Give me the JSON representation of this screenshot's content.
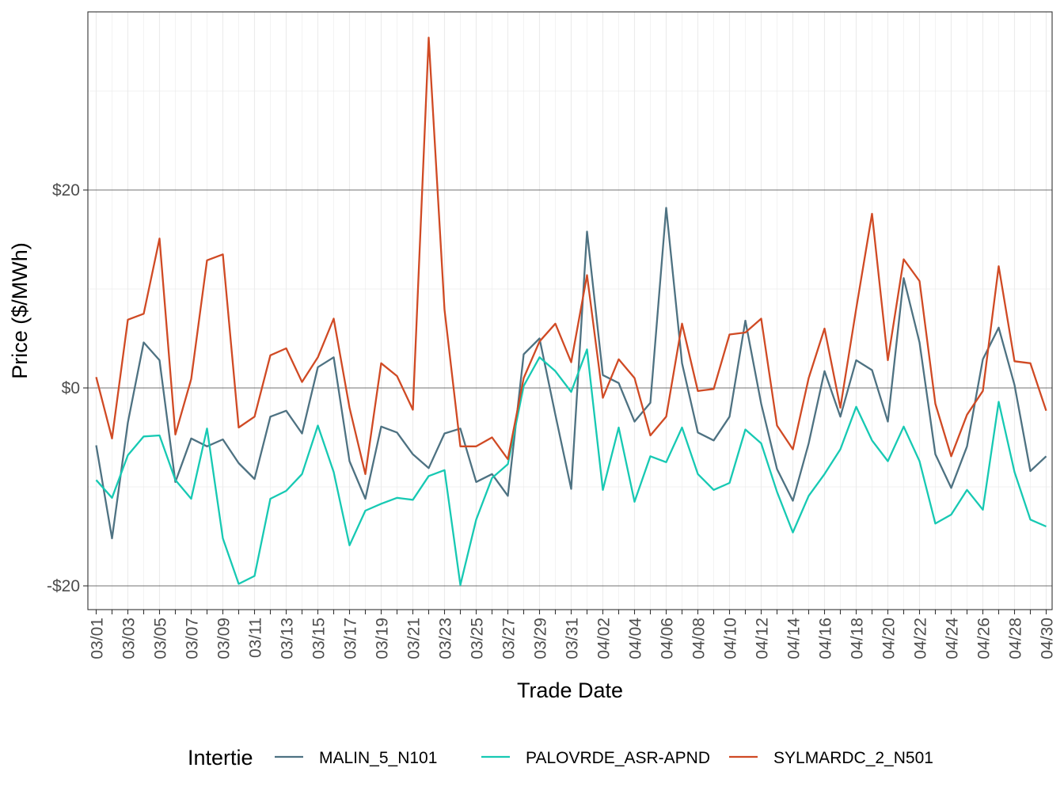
{
  "chart_data": {
    "type": "line",
    "title": "",
    "xlabel": "Trade Date",
    "ylabel": "Price ($/MWh)",
    "ylim": [
      -21,
      38
    ],
    "y_ticks": [
      -20,
      0,
      20
    ],
    "y_tick_labels": [
      "-$20",
      "$0",
      "$20"
    ],
    "x_tick_labels": [
      "03/01",
      "03/03",
      "03/05",
      "03/07",
      "03/09",
      "03/11",
      "03/13",
      "03/15",
      "03/17",
      "03/19",
      "03/21",
      "03/23",
      "03/25",
      "03/27",
      "03/29",
      "03/31",
      "04/02",
      "04/04",
      "04/06",
      "04/08",
      "04/10",
      "04/12",
      "04/14",
      "04/16",
      "04/18",
      "04/20",
      "04/22",
      "04/24",
      "04/26",
      "04/28",
      "04/30"
    ],
    "x_start": "03/01",
    "grid": true,
    "legend": {
      "title": "Intertie",
      "position": "bottom"
    },
    "series": [
      {
        "name": "MALIN_5_N101",
        "color": "#4e7282",
        "values": [
          -5.8,
          -15.2,
          -3.5,
          4.6,
          2.8,
          -9.5,
          -5.1,
          -5.9,
          -5.2,
          -7.6,
          -9.2,
          -2.9,
          -2.3,
          -4.6,
          2.1,
          3.1,
          -7.4,
          -11.2,
          -3.9,
          -4.5,
          -6.7,
          -8.1,
          -4.6,
          -4.1,
          -9.5,
          -8.7,
          -10.9,
          3.4,
          5.0,
          -2.7,
          -10.2,
          15.8,
          1.3,
          0.5,
          -3.4,
          -1.5,
          18.2,
          2.5,
          -4.5,
          -5.3,
          -2.9,
          6.8,
          -1.6,
          -8.2,
          -11.4,
          -5.6,
          1.7,
          -2.9,
          2.8,
          1.8,
          -3.4,
          11.1,
          4.6,
          -6.7,
          -10.1,
          -5.9,
          2.9,
          6.1,
          0.3,
          -8.4,
          -6.9
        ]
      },
      {
        "name": "PALOVRDE_ASR-APND",
        "color": "#17c9b3",
        "values": [
          -9.3,
          -11.1,
          -6.8,
          -4.9,
          -4.8,
          -9.3,
          -11.2,
          -4.1,
          -15.2,
          -19.8,
          -19.0,
          -11.2,
          -10.4,
          -8.7,
          -3.8,
          -8.5,
          -15.9,
          -12.4,
          -11.7,
          -11.1,
          -11.3,
          -8.9,
          -8.3,
          -19.9,
          -13.3,
          -9.1,
          -7.7,
          0.2,
          3.1,
          1.7,
          -0.4,
          3.9,
          -10.3,
          -4.0,
          -11.5,
          -6.9,
          -7.5,
          -4.0,
          -8.7,
          -10.3,
          -9.6,
          -4.2,
          -5.6,
          -10.5,
          -14.6,
          -10.9,
          -8.7,
          -6.2,
          -1.9,
          -5.3,
          -7.4,
          -3.9,
          -7.4,
          -13.7,
          -12.8,
          -10.3,
          -12.3,
          -1.4,
          -8.5,
          -13.3,
          -14.0
        ]
      },
      {
        "name": "SYLMARDC_2_N501",
        "color": "#d04a24",
        "values": [
          1.1,
          -5.1,
          6.9,
          7.5,
          15.1,
          -4.7,
          0.9,
          12.9,
          13.5,
          -4.0,
          -2.9,
          3.3,
          4.0,
          0.6,
          3.1,
          7.0,
          -2.0,
          -8.7,
          2.5,
          1.2,
          -2.2,
          35.4,
          7.9,
          -5.9,
          -5.9,
          -5.0,
          -7.2,
          1.0,
          4.7,
          6.5,
          2.6,
          11.4,
          -1.0,
          2.9,
          1.0,
          -4.8,
          -2.9,
          6.5,
          -0.3,
          -0.1,
          5.4,
          5.6,
          7.0,
          -3.8,
          -6.2,
          1.0,
          6.0,
          -2.0,
          8.0,
          17.6,
          2.8,
          13.0,
          10.8,
          -1.6,
          -6.9,
          -2.7,
          -0.3,
          12.3,
          2.7,
          2.5,
          -2.3
        ]
      }
    ]
  }
}
